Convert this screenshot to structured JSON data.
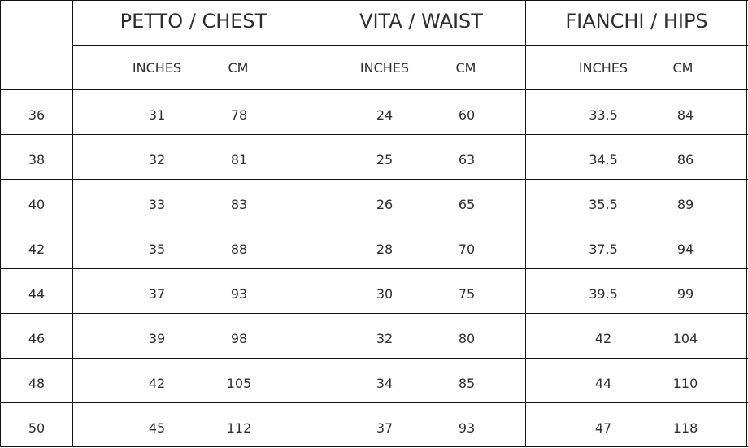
{
  "headers": {
    "chest": "PETTO / CHEST",
    "waist": "VITA / WAIST",
    "hips": "FIANCHI / HIPS",
    "inches": "INCHES",
    "cm": "CM"
  },
  "rows": [
    {
      "size": "36",
      "chest_in": "31",
      "chest_cm": "78",
      "waist_in": "24",
      "waist_cm": "60",
      "hips_in": "33.5",
      "hips_cm": "84"
    },
    {
      "size": "38",
      "chest_in": "32",
      "chest_cm": "81",
      "waist_in": "25",
      "waist_cm": "63",
      "hips_in": "34.5",
      "hips_cm": "86"
    },
    {
      "size": "40",
      "chest_in": "33",
      "chest_cm": "83",
      "waist_in": "26",
      "waist_cm": "65",
      "hips_in": "35.5",
      "hips_cm": "89"
    },
    {
      "size": "42",
      "chest_in": "35",
      "chest_cm": "88",
      "waist_in": "28",
      "waist_cm": "70",
      "hips_in": "37.5",
      "hips_cm": "94"
    },
    {
      "size": "44",
      "chest_in": "37",
      "chest_cm": "93",
      "waist_in": "30",
      "waist_cm": "75",
      "hips_in": "39.5",
      "hips_cm": "99"
    },
    {
      "size": "46",
      "chest_in": "39",
      "chest_cm": "98",
      "waist_in": "32",
      "waist_cm": "80",
      "hips_in": "42",
      "hips_cm": "104"
    },
    {
      "size": "48",
      "chest_in": "42",
      "chest_cm": "105",
      "waist_in": "34",
      "waist_cm": "85",
      "hips_in": "44",
      "hips_cm": "110"
    },
    {
      "size": "50",
      "chest_in": "45",
      "chest_cm": "112",
      "waist_in": "37",
      "waist_cm": "93",
      "hips_in": "47",
      "hips_cm": "118"
    }
  ]
}
